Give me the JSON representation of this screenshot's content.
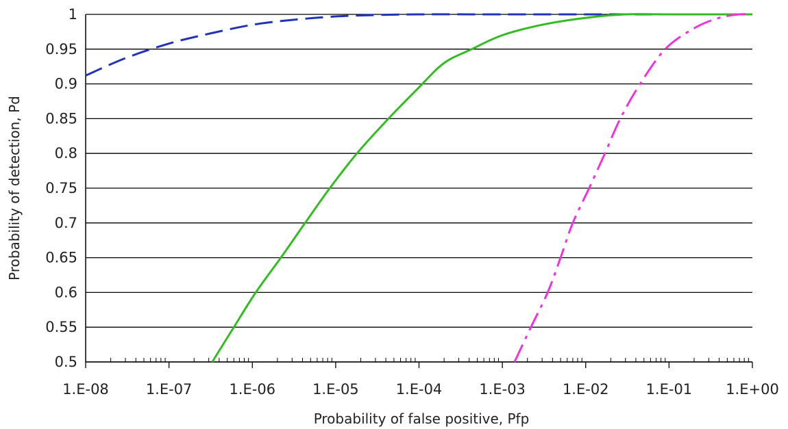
{
  "chart_data": {
    "type": "line",
    "title": "",
    "xlabel": "Probability of false positive, Pfp",
    "ylabel": "Probability of detection, Pd",
    "x_scale": "log",
    "xlim": [
      1e-08,
      1
    ],
    "ylim": [
      0.5,
      1
    ],
    "x_ticks": [
      1e-08,
      1e-07,
      1e-06,
      1e-05,
      0.0001,
      0.001,
      0.01,
      0.1,
      1
    ],
    "x_tick_labels": [
      "1.E-08",
      "1.E-07",
      "1.E-06",
      "1.E-05",
      "1.E-04",
      "1.E-03",
      "1.E-02",
      "1.E-01",
      "1.E+00"
    ],
    "y_ticks": [
      0.5,
      0.55,
      0.6,
      0.65,
      0.7,
      0.75,
      0.8,
      0.85,
      0.9,
      0.95,
      1
    ],
    "y_tick_labels": [
      "0.5",
      "0.55",
      "0.6",
      "0.65",
      "0.7",
      "0.75",
      "0.8",
      "0.85",
      "0.9",
      "0.95",
      "1"
    ],
    "grid": "horizontal",
    "legend": "none",
    "series": [
      {
        "color": "#2233bb",
        "style": "dashed",
        "points": [
          [
            1e-08,
            0.912
          ],
          [
            3e-08,
            0.937
          ],
          [
            1e-07,
            0.958
          ],
          [
            3e-07,
            0.972
          ],
          [
            1e-06,
            0.985
          ],
          [
            3e-06,
            0.992
          ],
          [
            1e-05,
            0.997
          ],
          [
            3e-05,
            0.999
          ],
          [
            0.0001,
            1.0
          ],
          [
            0.001,
            1.0
          ],
          [
            0.01,
            1.0
          ],
          [
            0.1,
            1.0
          ],
          [
            1,
            1.0
          ]
        ]
      },
      {
        "color": "#33bb22",
        "style": "solid",
        "points": [
          [
            3.3e-07,
            0.5
          ],
          [
            6e-07,
            0.55
          ],
          [
            1.1e-06,
            0.6
          ],
          [
            2.2e-06,
            0.65
          ],
          [
            4.3e-06,
            0.7
          ],
          [
            8.5e-06,
            0.75
          ],
          [
            1.8e-05,
            0.8
          ],
          [
            4.3e-05,
            0.85
          ],
          [
            0.0001,
            0.895
          ],
          [
            0.0002,
            0.93
          ],
          [
            0.00043,
            0.95
          ],
          [
            0.001,
            0.97
          ],
          [
            0.003,
            0.985
          ],
          [
            0.01,
            0.995
          ],
          [
            0.03,
            1.0
          ],
          [
            0.1,
            1.0
          ],
          [
            1,
            1.0
          ]
        ]
      },
      {
        "color": "#ee33dd",
        "style": "dashdot",
        "points": [
          [
            0.0014,
            0.5
          ],
          [
            0.0022,
            0.55
          ],
          [
            0.0035,
            0.6
          ],
          [
            0.005,
            0.65
          ],
          [
            0.007,
            0.7
          ],
          [
            0.011,
            0.75
          ],
          [
            0.017,
            0.8
          ],
          [
            0.026,
            0.85
          ],
          [
            0.045,
            0.9
          ],
          [
            0.09,
            0.95
          ],
          [
            0.2,
            0.98
          ],
          [
            0.4,
            0.995
          ],
          [
            0.7,
            1.0
          ],
          [
            1,
            1.0
          ]
        ]
      }
    ]
  }
}
